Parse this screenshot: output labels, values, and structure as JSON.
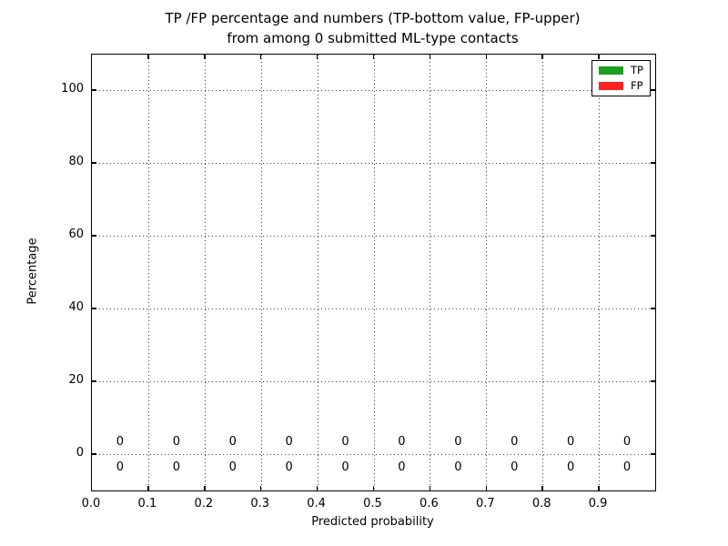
{
  "chart_data": {
    "type": "bar",
    "title_lines": [
      "TP /FP percentage and numbers (TP-bottom value, FP-upper)",
      "from among 0 submitted ML-type contacts"
    ],
    "xlabel": "Predicted probability",
    "ylabel": "Percentage",
    "xlim": [
      0.0,
      1.0
    ],
    "ylim": [
      -10,
      109.75
    ],
    "x_tick_values": [
      0.0,
      0.1,
      0.2,
      0.3,
      0.4,
      0.5,
      0.6,
      0.7,
      0.8,
      0.9
    ],
    "x_tick_labels": [
      "0.0",
      "0.1",
      "0.2",
      "0.3",
      "0.4",
      "0.5",
      "0.6",
      "0.7",
      "0.8",
      "0.9"
    ],
    "y_tick_values": [
      0,
      20,
      40,
      60,
      80,
      100
    ],
    "y_tick_labels": [
      "0",
      "20",
      "40",
      "60",
      "80",
      "100"
    ],
    "grid": {
      "style": "dotted",
      "color": "#3c3c3c",
      "on": true
    },
    "categories": [
      0.05,
      0.15,
      0.25,
      0.35,
      0.45,
      0.55,
      0.65,
      0.75,
      0.85,
      0.95
    ],
    "series": [
      {
        "name": "TP",
        "color": "#1e9e1e",
        "values": [
          0,
          0,
          0,
          0,
          0,
          0,
          0,
          0,
          0,
          0
        ]
      },
      {
        "name": "FP",
        "color": "#fb2222",
        "values": [
          0,
          0,
          0,
          0,
          0,
          0,
          0,
          0,
          0,
          0
        ]
      }
    ],
    "bar_count_labels": {
      "fp_upper": [
        "0",
        "0",
        "0",
        "0",
        "0",
        "0",
        "0",
        "0",
        "0",
        "0"
      ],
      "tp_bottom": [
        "0",
        "0",
        "0",
        "0",
        "0",
        "0",
        "0",
        "0",
        "0",
        "0"
      ]
    },
    "legend": {
      "position": "upper right",
      "entries": [
        {
          "label": "TP",
          "color": "#1e9e1e"
        },
        {
          "label": "FP",
          "color": "#fb2222"
        }
      ]
    }
  }
}
